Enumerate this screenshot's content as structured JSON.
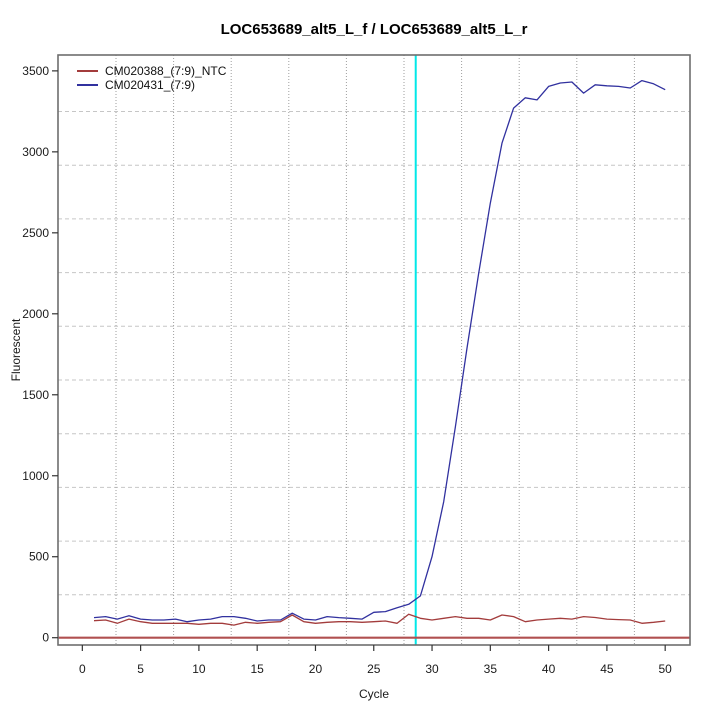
{
  "chart_data": {
    "type": "line",
    "title": "LOC653689_alt5_L_f / LOC653689_alt5_L_r",
    "xlabel": "Cycle",
    "ylabel": "Fluorescent",
    "xticks": [
      0,
      5,
      10,
      15,
      20,
      25,
      30,
      35,
      40,
      45,
      50
    ],
    "yticks": [
      0,
      500,
      1000,
      1500,
      2000,
      2500,
      3000,
      3500
    ],
    "xlim": [
      -1,
      52
    ],
    "ylim": [
      -45,
      3640
    ],
    "grid": "gray dotted, evenly spaced, not aligned to ticks",
    "legend_position": "top-left",
    "ct_vertical_line_x": 28.6,
    "ct_line_color": "#00E8E8",
    "baseline_horizontal_line_y": 0,
    "baseline_line_color": "#B05050",
    "x": [
      1,
      2,
      3,
      4,
      5,
      6,
      7,
      8,
      9,
      10,
      11,
      12,
      13,
      14,
      15,
      16,
      17,
      18,
      19,
      20,
      21,
      22,
      23,
      24,
      25,
      26,
      27,
      28,
      29,
      30,
      31,
      32,
      33,
      34,
      35,
      36,
      37,
      38,
      39,
      40,
      41,
      42,
      43,
      44,
      45,
      46,
      47,
      48,
      49,
      50
    ],
    "series": [
      {
        "name": "CM020388_(7:9)_NTC",
        "color": "#A33C3C",
        "values": [
          105,
          109,
          89,
          115,
          99,
          89,
          89,
          89,
          89,
          83,
          89,
          89,
          78,
          95,
          89,
          95,
          99,
          140,
          99,
          89,
          95,
          99,
          99,
          95,
          99,
          103,
          89,
          145,
          120,
          109,
          120,
          130,
          120,
          120,
          109,
          140,
          130,
          99,
          109,
          115,
          120,
          115,
          130,
          125,
          115,
          112,
          109,
          89,
          95,
          103
        ]
      },
      {
        "name": "CM020431_(7:9)",
        "color": "#31319F",
        "values": [
          124,
          130,
          115,
          136,
          115,
          109,
          109,
          115,
          99,
          109,
          115,
          130,
          130,
          120,
          103,
          109,
          109,
          151,
          115,
          109,
          130,
          124,
          120,
          115,
          157,
          161,
          185,
          206,
          258,
          500,
          840,
          1303,
          1788,
          2251,
          2683,
          3054,
          3270,
          3334,
          3321,
          3404,
          3425,
          3431,
          3363,
          3414,
          3408,
          3404,
          3394,
          3440,
          3420,
          3384
        ]
      }
    ]
  }
}
